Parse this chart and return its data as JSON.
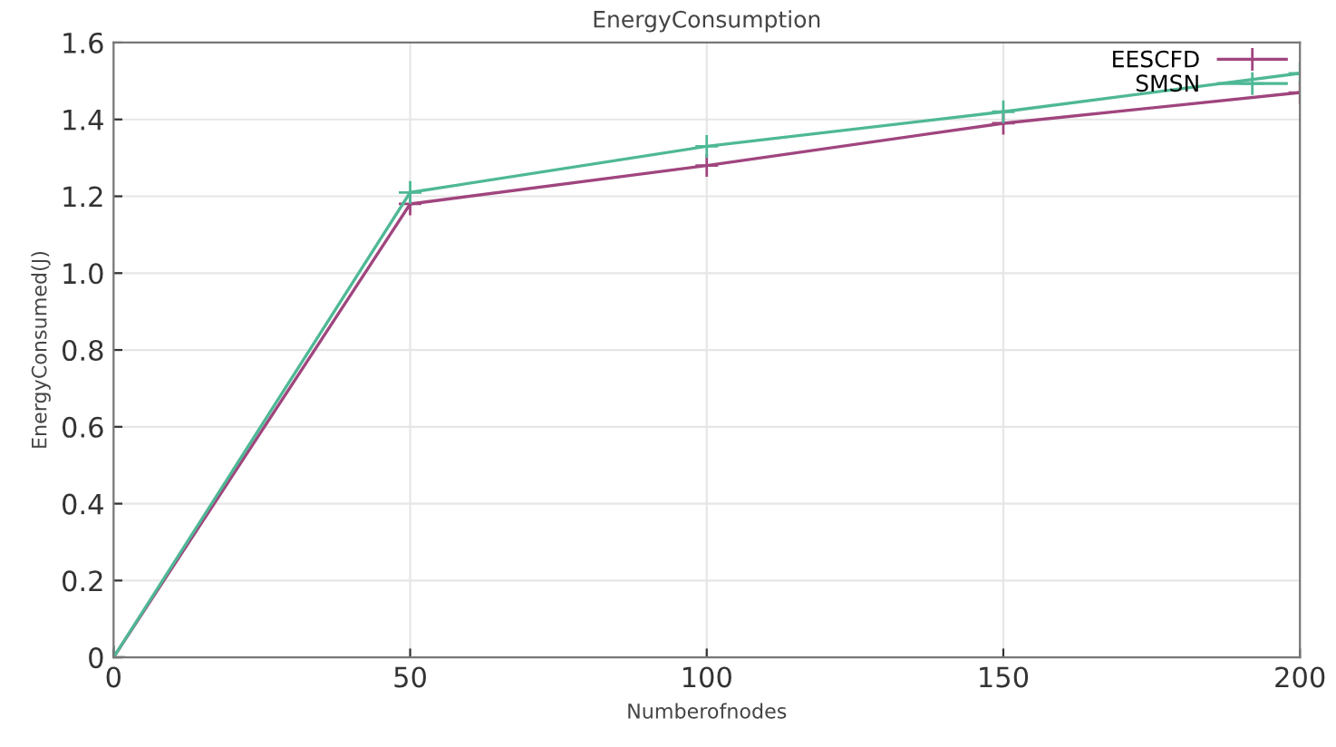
{
  "chart_data": {
    "type": "line",
    "title": "EnergyConsumption",
    "xlabel": "Numberofnodes",
    "ylabel": "EnergyConsumed(J)",
    "x": [
      0,
      50,
      100,
      150,
      200
    ],
    "series": [
      {
        "name": "EESCFD",
        "color": "#a0457e",
        "values": [
          0,
          1.18,
          1.28,
          1.39,
          1.47
        ]
      },
      {
        "name": "SMSN",
        "color": "#4fb896",
        "values": [
          0,
          1.21,
          1.33,
          1.42,
          1.52
        ]
      }
    ],
    "xlim": [
      0,
      200
    ],
    "xticks": [
      0,
      50,
      100,
      150,
      200
    ],
    "ylim": [
      0,
      1.6
    ],
    "yticks": [
      0,
      0.2,
      0.4,
      0.6,
      0.8,
      {
        "value": 1.0,
        "label": "1.0"
      },
      1.2,
      1.4,
      1.6
    ],
    "grid": true,
    "legend": "top right",
    "marker": "cross",
    "line_style": "solid"
  }
}
